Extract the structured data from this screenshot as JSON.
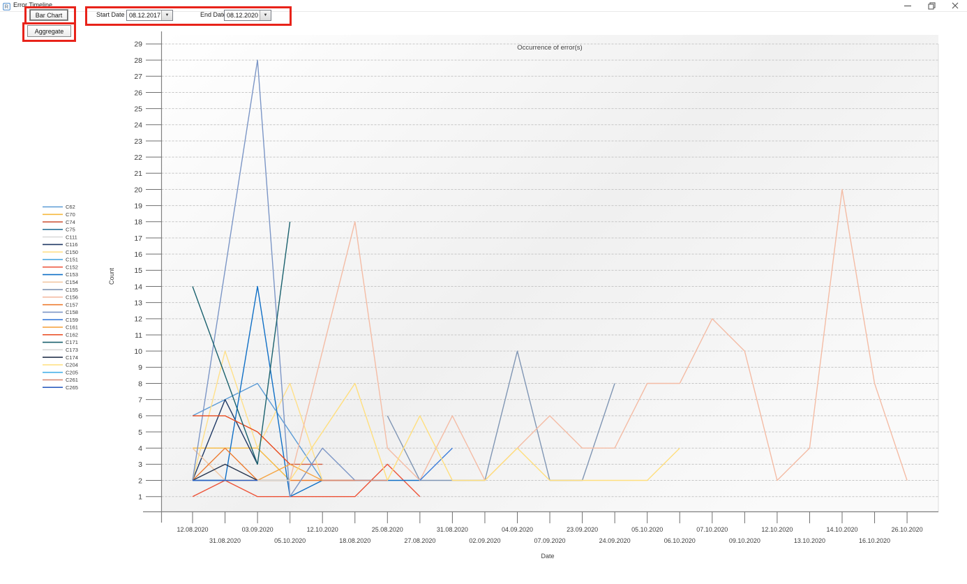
{
  "window": {
    "title": "Error Timeline"
  },
  "window_controls": {
    "minimize_icon": "minimize",
    "restore_icon": "restore",
    "close_icon": "close"
  },
  "toolbar": {
    "bar_chart": "Bar Chart",
    "aggregate": "Aggregate",
    "start_date_label": "Start Date",
    "start_date_value": "08.12.2017",
    "end_date_label": "End Date",
    "end_date_value": "08.12.2020",
    "dropdown_icon": "▼"
  },
  "annotation_color": "#e8231a",
  "chart_data": {
    "type": "line",
    "title": "Occurrence of error(s)",
    "xlabel": "Date",
    "ylabel": "Count",
    "ylim": [
      1,
      29
    ],
    "ytick_step": 1,
    "grid": "horizontal-dashed",
    "legend_position": "left",
    "categories": [
      "12.08.2020",
      "31.08.2020",
      "03.09.2020",
      "05.10.2020",
      "12.10.2020",
      "18.08.2020",
      "25.08.2020",
      "27.08.2020",
      "31.08.2020",
      "02.09.2020",
      "04.09.2020",
      "07.09.2020",
      "23.09.2020",
      "24.09.2020",
      "05.10.2020",
      "06.10.2020",
      "07.10.2020",
      "09.10.2020",
      "12.10.2020",
      "13.10.2020",
      "14.10.2020",
      "16.10.2020",
      "26.10.2020"
    ],
    "series": [
      {
        "name": "C62",
        "color": "#5B9BD5",
        "points": [
          [
            1,
            6
          ],
          [
            3,
            8
          ],
          [
            5,
            2
          ]
        ]
      },
      {
        "name": "C70",
        "color": "#F6B93F",
        "points": [
          [
            1,
            4
          ],
          [
            2,
            4
          ],
          [
            3,
            4
          ],
          [
            4,
            2
          ]
        ]
      },
      {
        "name": "C74",
        "color": "#D15B3F",
        "points": [
          [
            4,
            3
          ],
          [
            5,
            3
          ]
        ]
      },
      {
        "name": "C75",
        "color": "#2E7599",
        "points": [
          [
            1,
            2
          ],
          [
            2,
            2
          ]
        ]
      },
      {
        "name": "C111",
        "color": "#D9D9D9",
        "points": [
          [
            1,
            2
          ],
          [
            3,
            2
          ]
        ]
      },
      {
        "name": "C116",
        "color": "#1F3864",
        "points": [
          [
            1,
            2
          ],
          [
            2,
            7
          ],
          [
            3,
            3
          ]
        ]
      },
      {
        "name": "C150",
        "color": "#FFE08A",
        "points": [
          [
            1,
            2
          ],
          [
            2,
            10
          ],
          [
            3,
            4
          ],
          [
            4,
            8
          ],
          [
            5,
            2
          ]
        ]
      },
      {
        "name": "C151",
        "color": "#4FA8E0",
        "points": [
          [
            1,
            2
          ],
          [
            2,
            2
          ],
          [
            3,
            2
          ],
          [
            4,
            2
          ]
        ]
      },
      {
        "name": "C152",
        "color": "#ED5338",
        "points": [
          [
            1,
            1
          ],
          [
            2,
            2
          ],
          [
            3,
            1
          ],
          [
            6,
            1
          ],
          [
            7,
            3
          ],
          [
            8,
            1
          ]
        ]
      },
      {
        "name": "C153",
        "color": "#0F6FC6",
        "points": [
          [
            2,
            2
          ],
          [
            3,
            14
          ],
          [
            4,
            1
          ],
          [
            5,
            2
          ],
          [
            6,
            2
          ],
          [
            8,
            2
          ]
        ]
      },
      {
        "name": "C154",
        "color": "#F2C8A4",
        "points": [
          [
            1,
            4
          ],
          [
            2,
            2
          ],
          [
            5,
            2
          ],
          [
            6,
            2
          ]
        ]
      },
      {
        "name": "C155",
        "color": "#8096B4",
        "points": [
          [
            7,
            6
          ],
          [
            8,
            2
          ],
          [
            10,
            2
          ],
          [
            11,
            10
          ],
          [
            12,
            2
          ],
          [
            13,
            2
          ],
          [
            14,
            8
          ]
        ]
      },
      {
        "name": "C156",
        "color": "#F4BCA5",
        "points": [
          [
            4,
            2
          ],
          [
            6,
            18
          ],
          [
            7,
            4
          ],
          [
            8,
            2
          ],
          [
            9,
            6
          ],
          [
            10,
            2
          ],
          [
            12,
            6
          ],
          [
            13,
            4
          ],
          [
            14,
            4
          ],
          [
            15,
            8
          ],
          [
            16,
            8
          ],
          [
            17,
            12
          ],
          [
            18,
            10
          ],
          [
            19,
            2
          ],
          [
            20,
            4
          ],
          [
            21,
            20
          ],
          [
            22,
            8
          ],
          [
            23,
            2
          ]
        ]
      },
      {
        "name": "C157",
        "color": "#ED7D31",
        "points": [
          [
            1,
            2
          ],
          [
            2,
            4
          ],
          [
            3,
            2
          ],
          [
            6,
            2
          ]
        ]
      },
      {
        "name": "C158",
        "color": "#7C96C6",
        "points": [
          [
            1,
            2
          ],
          [
            3,
            28
          ],
          [
            4,
            1
          ],
          [
            5,
            4
          ],
          [
            6,
            2
          ]
        ]
      },
      {
        "name": "C159",
        "color": "#3D7EDB",
        "points": [
          [
            8,
            2
          ],
          [
            9,
            4
          ]
        ]
      },
      {
        "name": "C161",
        "color": "#F5A545",
        "points": [
          [
            2,
            2
          ],
          [
            3,
            2
          ],
          [
            4,
            3
          ],
          [
            5,
            2
          ]
        ]
      },
      {
        "name": "C162",
        "color": "#E8491D",
        "points": [
          [
            1,
            6
          ],
          [
            2,
            6
          ],
          [
            3,
            5
          ],
          [
            4,
            3
          ]
        ]
      },
      {
        "name": "C171",
        "color": "#1A616E",
        "points": [
          [
            1,
            14
          ],
          [
            3,
            3
          ],
          [
            4,
            18
          ]
        ]
      },
      {
        "name": "C173",
        "color": "#D6D6D6",
        "points": [
          [
            2,
            2
          ],
          [
            4,
            2
          ]
        ]
      },
      {
        "name": "C174",
        "color": "#26344E",
        "points": [
          [
            1,
            2
          ],
          [
            2,
            3
          ],
          [
            3,
            2
          ]
        ]
      },
      {
        "name": "C204",
        "color": "#FFDF7E",
        "points": [
          [
            4,
            2
          ],
          [
            6,
            8
          ],
          [
            7,
            2
          ],
          [
            8,
            6
          ],
          [
            9,
            2
          ],
          [
            10,
            2
          ],
          [
            11,
            4
          ],
          [
            12,
            2
          ],
          [
            15,
            2
          ],
          [
            16,
            4
          ]
        ]
      },
      {
        "name": "C205",
        "color": "#45B1E8",
        "points": [
          [
            1,
            2
          ],
          [
            2,
            2
          ]
        ]
      },
      {
        "name": "C261",
        "color": "#D98C77",
        "points": [
          [
            5,
            2
          ],
          [
            7,
            2
          ]
        ]
      },
      {
        "name": "C265",
        "color": "#2F5FC0",
        "points": [
          [
            1,
            2
          ],
          [
            2,
            2
          ],
          [
            3,
            2
          ]
        ]
      }
    ]
  }
}
